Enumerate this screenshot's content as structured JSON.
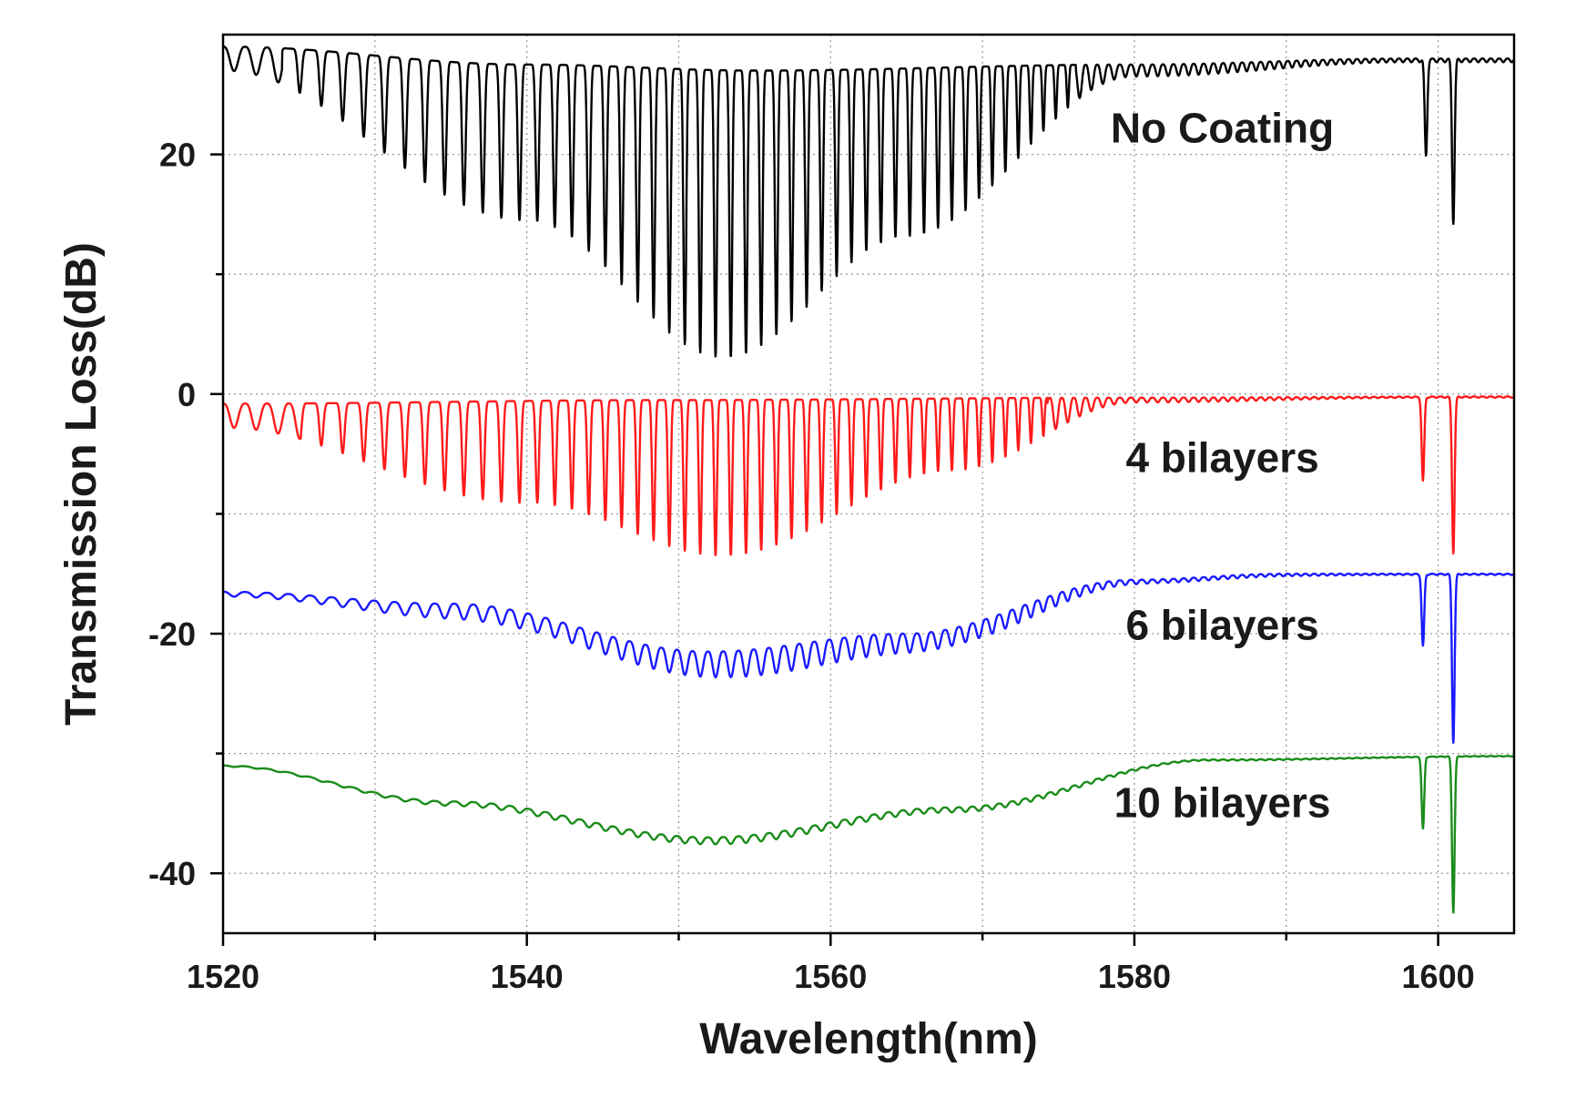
{
  "chart_data": {
    "type": "line",
    "title": "",
    "xlabel": "Wavelength(nm)",
    "ylabel": "Transmission Loss(dB)",
    "xlim": [
      1520,
      1605
    ],
    "ylim": [
      -45,
      30
    ],
    "x_ticks": [
      1520,
      1540,
      1560,
      1580,
      1600
    ],
    "x_minor_ticks": [
      1530,
      1550,
      1570,
      1590
    ],
    "y_ticks": [
      20,
      0,
      -20,
      -40
    ],
    "y_minor_ticks": [
      10,
      -10,
      -30
    ],
    "grid": true,
    "series": [
      {
        "name": "No Coating",
        "label": "No Coating",
        "color": "#000000",
        "baseline_envelope": {
          "x": [
            1520,
            1540,
            1555,
            1580,
            1598,
            1605
          ],
          "y": [
            29,
            27.5,
            27,
            27.5,
            28,
            28
          ]
        },
        "fringe_dip_depth_envelope": {
          "x": [
            1520,
            1540,
            1553,
            1565,
            1580,
            1598
          ],
          "y": [
            2,
            13,
            24,
            14,
            1,
            0.3
          ]
        },
        "fringe_period_nm": {
          "x": [
            1520,
            1555,
            1598
          ],
          "y": [
            1.45,
            1.0,
            0.55
          ]
        },
        "notches": [
          {
            "x": 1599.2,
            "depth_db": 8
          },
          {
            "x": 1601.0,
            "depth_db": 13.5
          }
        ],
        "label_anchor_x": 1578,
        "label_anchor_y": 21
      },
      {
        "name": "4 bilayers",
        "label": "4 bilayers",
        "color": "#ff1a1a",
        "baseline_envelope": {
          "x": [
            1520,
            1550,
            1580,
            1605
          ],
          "y": [
            -0.8,
            -0.5,
            -0.3,
            -0.2
          ]
        },
        "fringe_dip_depth_envelope": {
          "x": [
            1520,
            1540,
            1553,
            1568,
            1580,
            1598
          ],
          "y": [
            2,
            8.5,
            13,
            6,
            0.4,
            0.1
          ]
        },
        "fringe_period_nm": {
          "x": [
            1520,
            1555,
            1598
          ],
          "y": [
            1.45,
            1.0,
            0.55
          ]
        },
        "notches": [
          {
            "x": 1599.0,
            "depth_db": 7
          },
          {
            "x": 1601.0,
            "depth_db": 13
          }
        ],
        "label_anchor_x": 1578,
        "label_anchor_y": -6.5
      },
      {
        "name": "6 bilayers",
        "label": "6 bilayers",
        "color": "#1a1aff",
        "baseline_envelope": {
          "x": [
            1520,
            1535,
            1552,
            1565,
            1580,
            1590,
            1605
          ],
          "y": [
            -16.5,
            -17.5,
            -21.5,
            -20,
            -15.5,
            -15,
            -15
          ]
        },
        "fringe_dip_depth_envelope": {
          "x": [
            1520,
            1540,
            1555,
            1570,
            1582,
            1598
          ],
          "y": [
            0.4,
            1.4,
            2.2,
            1.4,
            0.3,
            0.1
          ]
        },
        "fringe_period_nm": {
          "x": [
            1520,
            1555,
            1598
          ],
          "y": [
            1.45,
            1.0,
            0.55
          ]
        },
        "notches": [
          {
            "x": 1599.0,
            "depth_db": 6
          },
          {
            "x": 1601.0,
            "depth_db": 14
          }
        ],
        "label_anchor_x": 1578,
        "label_anchor_y": -20.5
      },
      {
        "name": "10 bilayers",
        "label": "10 bilayers",
        "color": "#1a8c1a",
        "baseline_envelope": {
          "x": [
            1520,
            1535,
            1552,
            1568,
            1585,
            1605
          ],
          "y": [
            -31,
            -34,
            -37,
            -34.5,
            -30.5,
            -30.2
          ]
        },
        "fringe_dip_depth_envelope": {
          "x": [
            1520,
            1545,
            1555,
            1570,
            1585,
            1598
          ],
          "y": [
            0.1,
            0.5,
            0.6,
            0.4,
            0.1,
            0.05
          ]
        },
        "fringe_period_nm": {
          "x": [
            1520,
            1555,
            1598
          ],
          "y": [
            1.45,
            1.0,
            0.55
          ]
        },
        "notches": [
          {
            "x": 1599.0,
            "depth_db": 6
          },
          {
            "x": 1601.0,
            "depth_db": 13
          }
        ],
        "label_anchor_x": 1578,
        "label_anchor_y": -35.3
      }
    ]
  }
}
